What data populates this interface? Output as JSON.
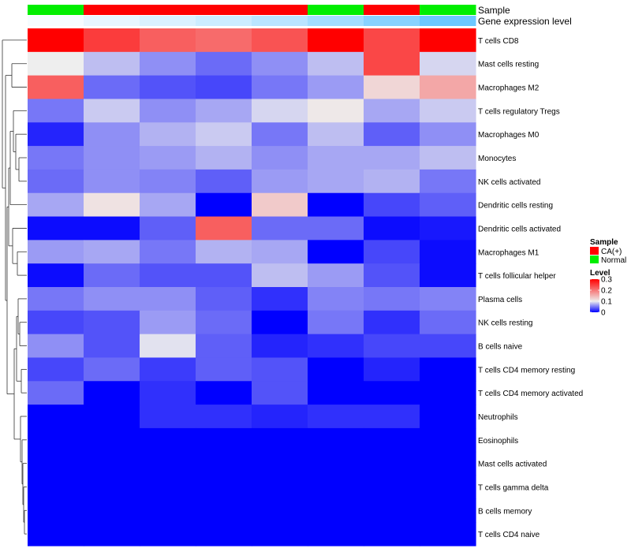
{
  "chart_data": {
    "type": "heatmap",
    "title": "",
    "annotation_tracks": [
      {
        "name": "Sample",
        "values": [
          "Normal",
          "CA(+)",
          "CA(+)",
          "CA(+)",
          "CA(+)",
          "Normal",
          "CA(+)",
          "Normal"
        ]
      },
      {
        "name": "Gene expression level",
        "values": [
          0.02,
          0.05,
          0.08,
          0.11,
          0.15,
          0.2,
          0.26,
          0.32
        ]
      }
    ],
    "rows": [
      "T cells CD8",
      "Mast cells resting",
      "Macrophages M2",
      "T cells regulatory  Tregs",
      "Macrophages M0",
      "Monocytes",
      "NK cells activated",
      "Dendritic cells resting",
      "Dendritic cells activated",
      "Macrophages M1",
      "T cells follicular helper",
      "Plasma cells",
      "NK cells resting",
      "B cells naive",
      "T cells CD4 memory resting",
      "T cells CD4 memory activated",
      "Neutrophils",
      "Eosinophils",
      "Mast cells activated",
      "T cells gamma delta",
      "B cells memory",
      "T cells CD4 naive"
    ],
    "values": [
      [
        0.3,
        0.25,
        0.22,
        0.21,
        0.23,
        0.3,
        0.24,
        0.3
      ],
      [
        0.1,
        0.08,
        0.06,
        0.045,
        0.06,
        0.08,
        0.24,
        0.09
      ],
      [
        0.22,
        0.045,
        0.035,
        0.03,
        0.05,
        0.065,
        0.12,
        0.16
      ],
      [
        0.05,
        0.085,
        0.06,
        0.07,
        0.09,
        0.105,
        0.07,
        0.085
      ],
      [
        0.015,
        0.06,
        0.075,
        0.085,
        0.05,
        0.08,
        0.04,
        0.06
      ],
      [
        0.05,
        0.06,
        0.065,
        0.075,
        0.06,
        0.07,
        0.07,
        0.08
      ],
      [
        0.045,
        0.06,
        0.055,
        0.04,
        0.065,
        0.07,
        0.075,
        0.05
      ],
      [
        0.07,
        0.11,
        0.07,
        0.0,
        0.13,
        0.0,
        0.03,
        0.04
      ],
      [
        0.005,
        0.005,
        0.04,
        0.22,
        0.045,
        0.045,
        0.005,
        0.01
      ],
      [
        0.065,
        0.07,
        0.05,
        0.075,
        0.07,
        0.0,
        0.03,
        0.005
      ],
      [
        0.005,
        0.045,
        0.035,
        0.035,
        0.08,
        0.065,
        0.035,
        0.005
      ],
      [
        0.05,
        0.06,
        0.06,
        0.04,
        0.02,
        0.055,
        0.05,
        0.055
      ],
      [
        0.03,
        0.035,
        0.065,
        0.045,
        0.0,
        0.05,
        0.02,
        0.045
      ],
      [
        0.06,
        0.035,
        0.095,
        0.04,
        0.015,
        0.02,
        0.03,
        0.03
      ],
      [
        0.03,
        0.045,
        0.025,
        0.04,
        0.035,
        0.0,
        0.015,
        0.0
      ],
      [
        0.045,
        0.0,
        0.02,
        0.0,
        0.035,
        0.0,
        0.0,
        0.0
      ],
      [
        0.0,
        0.0,
        0.02,
        0.02,
        0.015,
        0.02,
        0.02,
        0.0
      ],
      [
        0.0,
        0.0,
        0.0,
        0.0,
        0.0,
        0.0,
        0.0,
        0.0
      ],
      [
        0.0,
        0.0,
        0.0,
        0.0,
        0.0,
        0.0,
        0.0,
        0.0
      ],
      [
        0.0,
        0.0,
        0.0,
        0.0,
        0.0,
        0.0,
        0.0,
        0.0
      ],
      [
        0.0,
        0.0,
        0.0,
        0.0,
        0.0,
        0.0,
        0.0,
        0.0
      ],
      [
        0.0,
        0.0,
        0.0,
        0.0,
        0.0,
        0.0,
        0.0,
        0.0
      ]
    ],
    "legend": {
      "sample_title": "Sample",
      "sample_entries": [
        {
          "label": "CA(+)",
          "color": "#ff0000"
        },
        {
          "label": "Normal",
          "color": "#00ee00"
        }
      ],
      "level_title": "Level",
      "level_ticks": [
        {
          "value": 0.3,
          "label": "0.3"
        },
        {
          "value": 0.2,
          "label": "0.2"
        },
        {
          "value": 0.1,
          "label": "0.1"
        },
        {
          "value": 0,
          "label": "0"
        }
      ],
      "placement": "right"
    },
    "color_scale": {
      "min": 0,
      "mid": 0.1,
      "max": 0.3,
      "low": "#0000ff",
      "mid_color": "#eeeeee",
      "high": "#ff0000"
    },
    "expression_scale": {
      "min": 0,
      "max": 0.35,
      "low": "#ffffff",
      "high": "#5ec3ff"
    },
    "dendrogram": "row-clustered",
    "grid": false
  }
}
